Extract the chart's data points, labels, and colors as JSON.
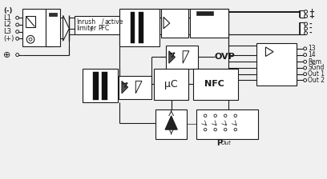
{
  "bg_color": "#f0f0f0",
  "line_color": "#1a1a1a",
  "labels": {
    "minus": "(-)",
    "L1": "L1",
    "L2": "L2",
    "L3": "L3",
    "plus_paren": "(+)",
    "gnd": "⊕",
    "inrush": "Inrush",
    "limiter": "limiter",
    "slash": "/",
    "active": "active",
    "pfc": "PFC",
    "ovp": "OVP",
    "uc": "μC",
    "nfc": "NFC",
    "pout": "P",
    "pout_sub": "Out",
    "n13": "13",
    "n14": "14",
    "rem": "Rem",
    "sgnd": "SGnd",
    "out1": "Out 1",
    "out2": "Out 2",
    "plus": "+",
    "minus_sign": "-"
  }
}
